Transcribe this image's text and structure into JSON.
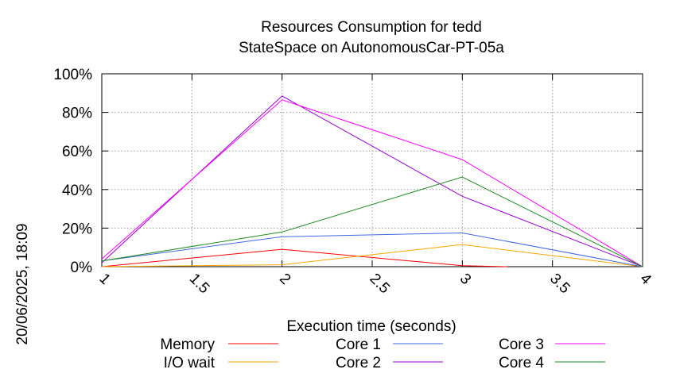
{
  "chart_data": {
    "type": "line",
    "title": "Resources Consumption for tedd",
    "subtitle": "StateSpace on AutonomousCar-PT-05a",
    "xlabel": "Execution time (seconds)",
    "ylabel": "",
    "side_label": "20/06/2025, 18:09",
    "xlim": [
      1,
      4
    ],
    "ylim": [
      0,
      100
    ],
    "x_ticks": [
      "1",
      "1.5",
      "2",
      "2.5",
      "3",
      "3.5",
      "4"
    ],
    "y_ticks": [
      "0%",
      "20%",
      "40%",
      "60%",
      "80%",
      "100%"
    ],
    "grid": true,
    "legend_position": "bottom",
    "series": [
      {
        "name": "Memory",
        "color": "#ff0000",
        "x": [
          1,
          2,
          3,
          3.25
        ],
        "y": [
          0,
          9,
          0.5,
          0
        ]
      },
      {
        "name": "I/O wait",
        "color": "#ffa500",
        "x": [
          1,
          2,
          3,
          4
        ],
        "y": [
          0,
          1,
          11.5,
          0
        ]
      },
      {
        "name": "Core 1",
        "color": "#4169e1",
        "x": [
          1,
          2,
          3,
          4
        ],
        "y": [
          3,
          15.5,
          17.5,
          0
        ]
      },
      {
        "name": "Core 2",
        "color": "#9400d3",
        "x": [
          1,
          2,
          3,
          4
        ],
        "y": [
          2,
          88.5,
          36.5,
          0
        ]
      },
      {
        "name": "Core 3",
        "color": "#ff00ff",
        "x": [
          1,
          2,
          3,
          4
        ],
        "y": [
          4,
          86.5,
          55.5,
          0
        ]
      },
      {
        "name": "Core 4",
        "color": "#228b22",
        "x": [
          1,
          2,
          3,
          4
        ],
        "y": [
          3,
          18,
          46.5,
          0
        ]
      }
    ]
  }
}
